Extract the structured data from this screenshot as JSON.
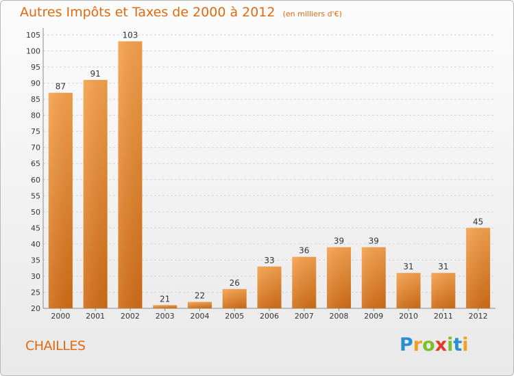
{
  "title": "Autres Impôts et Taxes de 2000 à 2012",
  "unit_note": "(en milliers d'€)",
  "place": "CHAILLES",
  "logo": {
    "letters": [
      "P",
      "r",
      "o",
      "x",
      "i",
      "t",
      "i"
    ],
    "colors": [
      "#2a8fd0",
      "#f0a020",
      "#7cbf2e",
      "#e23a2a",
      "#7cbf2e",
      "#2a8fd0",
      "#f0a020"
    ]
  },
  "colors": {
    "accent": "#e06a10",
    "bar_light": "#f5a14c",
    "bar_dark": "#d06d16"
  },
  "chart_data": {
    "type": "bar",
    "categories": [
      "2000",
      "2001",
      "2002",
      "2003",
      "2004",
      "2005",
      "2006",
      "2007",
      "2008",
      "2009",
      "2010",
      "2011",
      "2012"
    ],
    "values": [
      87,
      91,
      103,
      21,
      22,
      26,
      33,
      36,
      39,
      39,
      31,
      31,
      45
    ],
    "ylim": [
      20,
      105
    ],
    "yticks": [
      20,
      25,
      30,
      35,
      40,
      45,
      50,
      55,
      60,
      65,
      70,
      75,
      80,
      85,
      90,
      95,
      100,
      105
    ],
    "grid": true,
    "xlabel": "",
    "ylabel": ""
  }
}
